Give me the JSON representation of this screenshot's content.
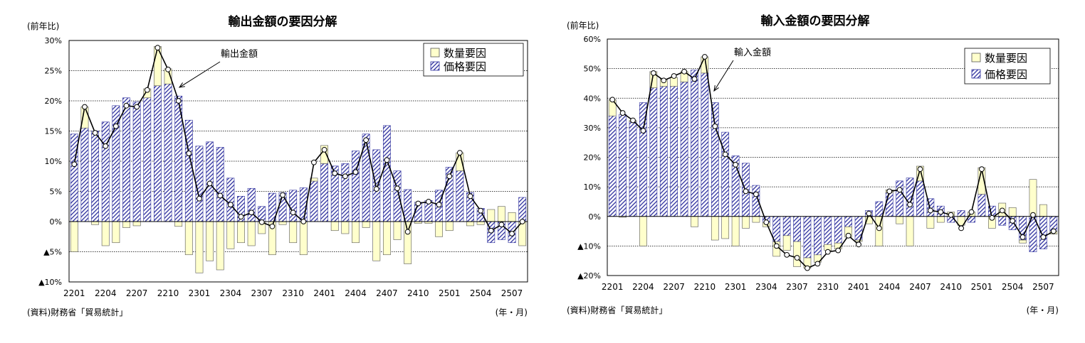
{
  "chart_data": [
    {
      "type": "bar",
      "title": "輸出金額の要因分解",
      "ylabel": "(前年比)",
      "xlabel": "(年・月)",
      "source": "(資料)財務省「貿易統計」",
      "ylim": [
        -10,
        30
      ],
      "yticks": [
        30,
        25,
        20,
        15,
        10,
        5,
        0,
        -5,
        -10
      ],
      "ytick_labels": [
        "30%",
        "25%",
        "20%",
        "15%",
        "10%",
        "5%",
        "0%",
        "▲5%",
        "▲10%"
      ],
      "grid": true,
      "legend_position": "top-right",
      "categories": [
        "2201",
        "2202",
        "2203",
        "2204",
        "2205",
        "2206",
        "2207",
        "2208",
        "2209",
        "2210",
        "2211",
        "2212",
        "2301",
        "2302",
        "2303",
        "2304",
        "2305",
        "2306",
        "2307",
        "2308",
        "2309",
        "2310",
        "2311",
        "2312",
        "2401",
        "2402",
        "2403",
        "2404",
        "2405",
        "2406",
        "2407",
        "2408",
        "2409",
        "2410",
        "2411",
        "2412",
        "2501",
        "2502",
        "2503",
        "2504",
        "2505",
        "2506",
        "2507",
        "2508"
      ],
      "tick_labels": [
        "2201",
        "2204",
        "2207",
        "2210",
        "2301",
        "2304",
        "2307",
        "2310",
        "2401",
        "2404",
        "2407",
        "2410",
        "2501",
        "2504",
        "2507"
      ],
      "annotation": "輸出金額",
      "series": [
        {
          "name": "数量要因",
          "values": [
            -5.0,
            3.5,
            -0.5,
            -4.0,
            -3.5,
            -1.0,
            -0.7,
            1.5,
            6.5,
            2.5,
            -0.8,
            -5.5,
            -8.5,
            -6.5,
            -8.0,
            -4.5,
            -3.5,
            -4.0,
            -2.0,
            -5.5,
            -0.5,
            -3.5,
            -5.5,
            0.5,
            3.0,
            -1.5,
            -2.0,
            -3.5,
            -1.0,
            -6.5,
            -5.5,
            -3.0,
            -7.0,
            -0.3,
            -0.3,
            -2.5,
            -1.5,
            3.0,
            -0.7,
            -0.5,
            2.0,
            2.5,
            1.5,
            -4.0
          ]
        },
        {
          "name": "価格要因",
          "values": [
            14.5,
            15.5,
            15.0,
            16.5,
            19.2,
            20.5,
            19.8,
            20.5,
            22.5,
            22.8,
            20.8,
            16.8,
            12.5,
            13.2,
            12.3,
            7.2,
            4.2,
            5.5,
            2.5,
            4.7,
            4.8,
            5.2,
            5.6,
            6.7,
            9.6,
            9.2,
            9.6,
            11.7,
            14.5,
            11.9,
            15.9,
            8.4,
            5.3,
            3.2,
            3.5,
            5.2,
            9.0,
            8.4,
            4.8,
            2.2,
            -3.5,
            -3.0,
            -3.5,
            4.0
          ]
        },
        {
          "name": "輸出金額",
          "values": [
            9.5,
            19.0,
            14.7,
            12.5,
            15.8,
            19.2,
            19.0,
            21.8,
            28.8,
            25.2,
            20.0,
            11.3,
            3.8,
            6.3,
            4.3,
            2.8,
            0.8,
            1.5,
            -0.1,
            -0.8,
            4.4,
            1.5,
            0.0,
            9.8,
            11.9,
            8.0,
            7.5,
            8.2,
            13.5,
            5.4,
            10.2,
            5.5,
            -1.7,
            3.0,
            3.3,
            2.8,
            7.5,
            11.4,
            4.2,
            1.8,
            -1.5,
            -0.5,
            -2.0,
            0.0
          ]
        }
      ]
    },
    {
      "type": "bar",
      "title": "輸入金額の要因分解",
      "ylabel": "(前年比)",
      "xlabel": "(年・月)",
      "source": "(資料)財務省「貿易統計」",
      "ylim": [
        -20,
        60
      ],
      "yticks": [
        60,
        50,
        40,
        30,
        20,
        10,
        0,
        -10,
        -20
      ],
      "ytick_labels": [
        "60%",
        "50%",
        "40%",
        "30%",
        "20%",
        "10%",
        "0%",
        "▲10%",
        "▲20%"
      ],
      "grid": true,
      "legend_position": "top-right",
      "categories": [
        "2201",
        "2202",
        "2203",
        "2204",
        "2205",
        "2206",
        "2207",
        "2208",
        "2209",
        "2210",
        "2211",
        "2212",
        "2301",
        "2302",
        "2303",
        "2304",
        "2305",
        "2306",
        "2307",
        "2308",
        "2309",
        "2310",
        "2311",
        "2312",
        "2401",
        "2402",
        "2403",
        "2404",
        "2405",
        "2406",
        "2407",
        "2408",
        "2409",
        "2410",
        "2411",
        "2412",
        "2501",
        "2502",
        "2503",
        "2504",
        "2505",
        "2506",
        "2507",
        "2508"
      ],
      "tick_labels": [
        "2201",
        "2204",
        "2207",
        "2210",
        "2301",
        "2304",
        "2307",
        "2310",
        "2401",
        "2404",
        "2407",
        "2410",
        "2501",
        "2504",
        "2507"
      ],
      "annotation": "輸入金額",
      "series": [
        {
          "name": "数量要因",
          "values": [
            5.5,
            -0.3,
            0.5,
            -10.0,
            5.5,
            2.5,
            3.0,
            3.5,
            -3.5,
            5.5,
            -8.0,
            -7.5,
            -10.0,
            -4.0,
            -2.0,
            -1.5,
            -5.0,
            -5.0,
            -8.5,
            -3.5,
            -2.5,
            -2.0,
            -2.0,
            -3.5,
            -0.5,
            -2.5,
            -10.0,
            1.0,
            -2.5,
            -10.0,
            5.0,
            -4.0,
            -2.0,
            1.5,
            -3.0,
            1.5,
            9.0,
            -4.0,
            4.5,
            3.0,
            -1.0,
            12.5,
            4.0,
            -1.0
          ]
        },
        {
          "name": "価格要因",
          "values": [
            34.0,
            34.5,
            32.0,
            38.5,
            43.5,
            44.0,
            44.0,
            45.5,
            49.5,
            48.5,
            38.5,
            28.5,
            20.5,
            18.0,
            10.5,
            -2.0,
            -8.5,
            -6.5,
            -8.5,
            -14.0,
            -13.0,
            -9.5,
            -9.0,
            -3.5,
            -8.0,
            2.0,
            5.0,
            8.0,
            12.0,
            13.0,
            12.0,
            6.0,
            3.5,
            -2.0,
            2.0,
            -2.0,
            7.5,
            3.5,
            -3.0,
            -4.5,
            -8.0,
            -12.0,
            -11.0,
            -5.0
          ]
        },
        {
          "name": "輸入金額",
          "values": [
            39.5,
            35.0,
            32.5,
            29.0,
            48.5,
            46.0,
            47.5,
            49.0,
            46.5,
            54.0,
            30.5,
            21.0,
            17.5,
            8.5,
            7.5,
            -2.0,
            -10.0,
            -13.0,
            -14.0,
            -17.5,
            -16.0,
            -12.0,
            -11.5,
            -6.5,
            -9.5,
            1.0,
            -4.0,
            8.5,
            9.0,
            4.0,
            16.0,
            2.0,
            1.5,
            0.5,
            -4.0,
            1.5,
            16.0,
            -0.5,
            2.0,
            -1.5,
            -7.0,
            0.5,
            -7.0,
            -5.0
          ]
        }
      ]
    }
  ]
}
